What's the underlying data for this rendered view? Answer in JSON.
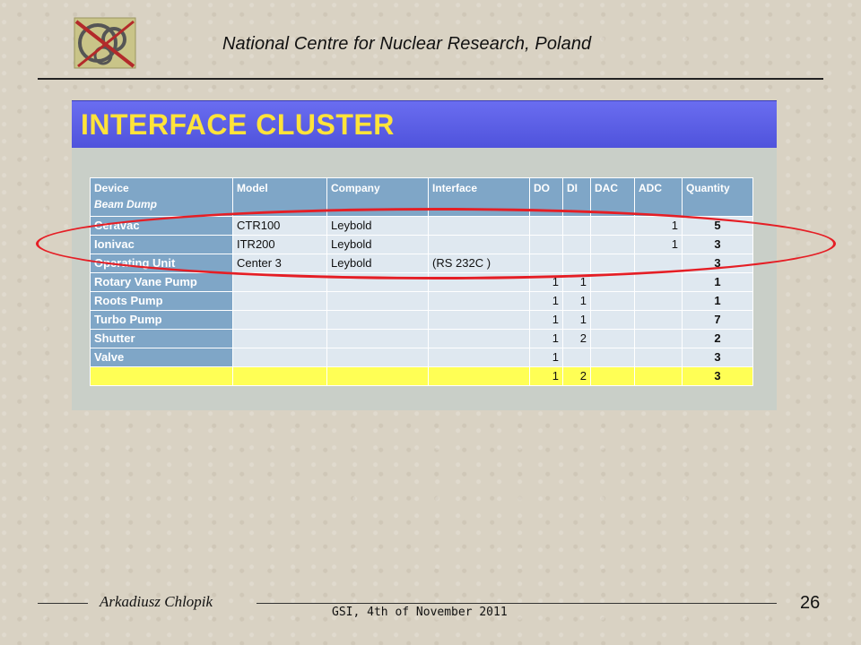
{
  "header": {
    "institution": "National Centre for Nuclear Research, Poland",
    "logo_icon": "ncbj-logo-icon"
  },
  "banner": {
    "title": "INTERFACE CLUSTER"
  },
  "table": {
    "headers": {
      "device": "Device",
      "device_sub": "Beam Dump",
      "model": "Model",
      "company": "Company",
      "interface": "Interface",
      "do": "DO",
      "di": "DI",
      "dac": "DAC",
      "adc": "ADC",
      "quantity": "Quantity"
    },
    "rows": [
      {
        "device": "Ceravac",
        "model": "CTR100",
        "company": "Leybold",
        "interface": "",
        "do": "",
        "di": "",
        "dac": "",
        "adc": "1",
        "quantity": "5"
      },
      {
        "device": "Ionivac",
        "model": "ITR200",
        "company": "Leybold",
        "interface": "",
        "do": "",
        "di": "",
        "dac": "",
        "adc": "1",
        "quantity": "3"
      },
      {
        "device": "Operating Unit",
        "model": "Center 3",
        "company": "Leybold",
        "interface": "(RS 232C )",
        "do": "",
        "di": "",
        "dac": "",
        "adc": "",
        "quantity": "3"
      },
      {
        "device": "Rotary Vane Pump",
        "model": "",
        "company": "",
        "interface": "",
        "do": "1",
        "di": "1",
        "dac": "",
        "adc": "",
        "quantity": "1"
      },
      {
        "device": "Roots Pump",
        "model": "",
        "company": "",
        "interface": "",
        "do": "1",
        "di": "1",
        "dac": "",
        "adc": "",
        "quantity": "1"
      },
      {
        "device": "Turbo Pump",
        "model": "",
        "company": "",
        "interface": "",
        "do": "1",
        "di": "1",
        "dac": "",
        "adc": "",
        "quantity": "7"
      },
      {
        "device": "Shutter",
        "model": "",
        "company": "",
        "interface": "",
        "do": "1",
        "di": "2",
        "dac": "",
        "adc": "",
        "quantity": "2"
      },
      {
        "device": "Valve",
        "model": "",
        "company": "",
        "interface": "",
        "do": "1",
        "di": "",
        "dac": "",
        "adc": "",
        "quantity": "3"
      }
    ],
    "total_row": {
      "device": "",
      "model": "",
      "company": "",
      "interface": "",
      "do": "1",
      "di": "2",
      "dac": "",
      "adc": "",
      "quantity": "3"
    }
  },
  "footer": {
    "author": "Arkadiusz Chlopik",
    "event": "GSI, 4th of November 2011",
    "page_number": "26"
  },
  "colors": {
    "banner": "#5256e0",
    "banner_text": "#ffe33a",
    "header_cells": "#7fa6c7",
    "body_cells": "#dfe8f0",
    "total_row": "#ffff55",
    "highlight_ellipse": "#e51e25"
  }
}
